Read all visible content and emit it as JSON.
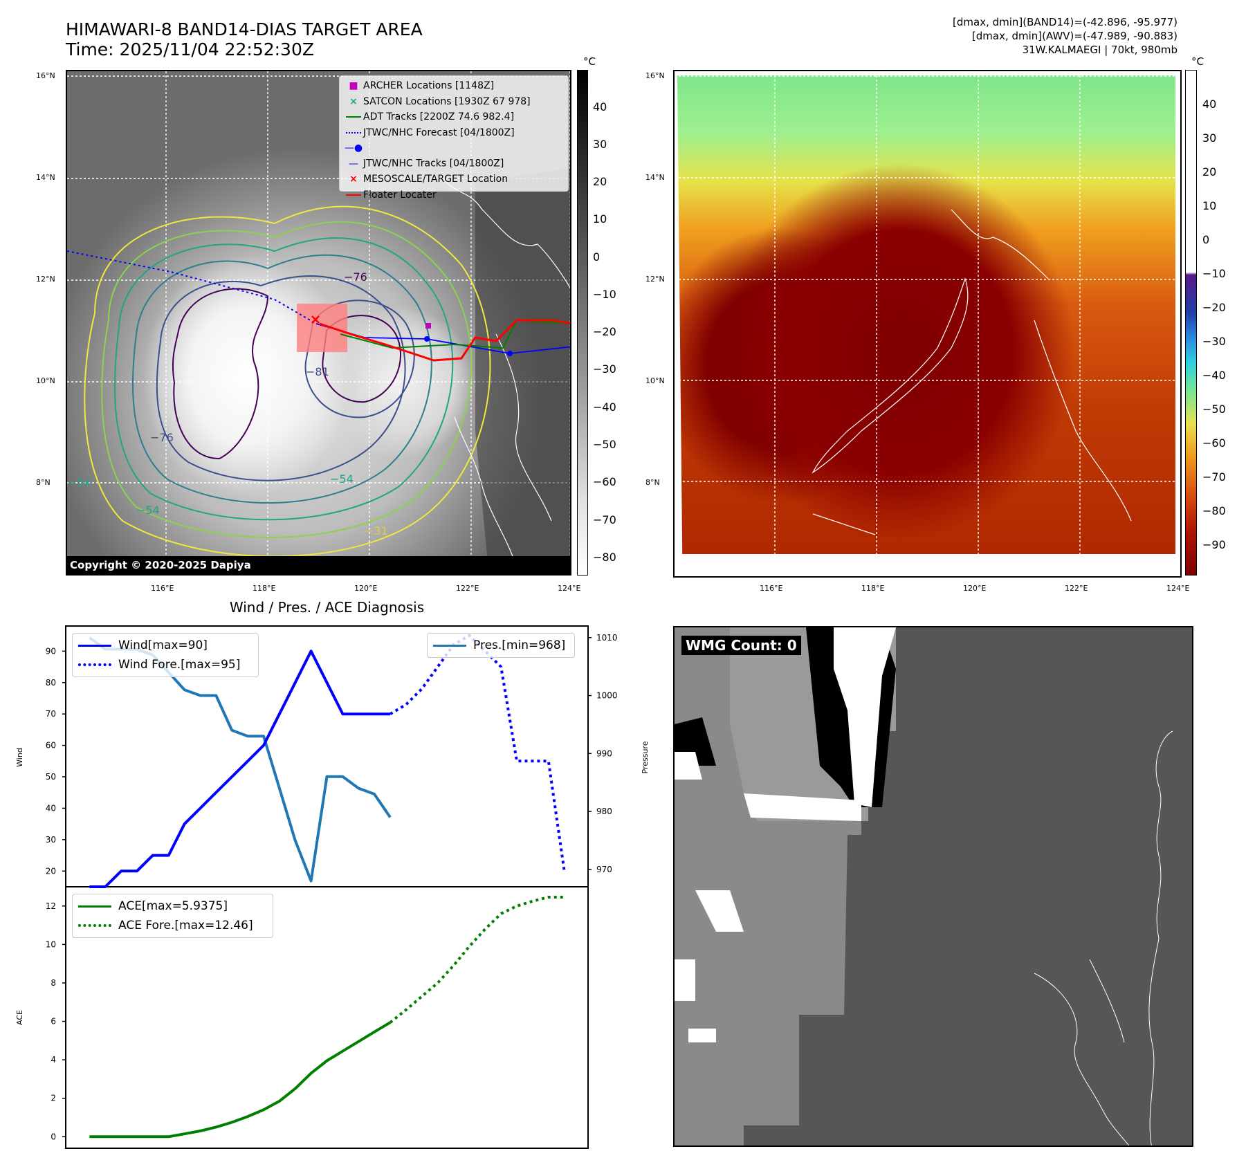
{
  "header": {
    "title_line1": "HIMAWARI-8 BAND14-DIAS TARGET AREA",
    "title_line2": "Time: 2025/11/04 22:52:30Z",
    "right_line1": "[dmax, dmin](BAND14)=(-42.896, -95.977)",
    "right_line2": "[dmax, dmin](AWV)=(-47.989, -90.883)",
    "right_line3": "31W.KALMAEGI | 70kt, 980mb"
  },
  "map1": {
    "copyright": "Copyright © 2020-2025 Dapiya",
    "lat_ticks": [
      "16°N",
      "14°N",
      "12°N",
      "10°N",
      "8°N"
    ],
    "lon_ticks": [
      "116°E",
      "118°E",
      "120°E",
      "122°E",
      "124°E"
    ],
    "colorbar_unit": "°C",
    "colorbar_ticks": [
      "40",
      "30",
      "20",
      "10",
      "0",
      "−10",
      "−20",
      "−30",
      "−40",
      "−50",
      "−60",
      "−70",
      "−80"
    ],
    "contour_labels": [
      "−76",
      "−81",
      "−76",
      "−54",
      "−54",
      "−54",
      "−31"
    ],
    "legend": [
      {
        "label": "ARCHER Locations [1148Z]",
        "color": "#c000c0",
        "marker": "square"
      },
      {
        "label": "SATCON Locations [1930Z 67 978]",
        "color": "#20a090",
        "marker": "x"
      },
      {
        "label": "ADT Tracks [2200Z 74.6 982.4]",
        "color": "#008000",
        "marker": "line"
      },
      {
        "label": "JTWC/NHC Forecast [04/1800Z]",
        "color": "#0000ff",
        "marker": "dotted"
      },
      {
        "label": "JTWC/NHC Tracks [04/1800Z]",
        "color": "#0000ff",
        "marker": "line-dot"
      },
      {
        "label": "MESOSCALE/TARGET Location",
        "color": "#ff0000",
        "marker": "x"
      },
      {
        "label": "Floater Locater",
        "color": "#ff0000",
        "marker": "line"
      }
    ]
  },
  "map2": {
    "lat_ticks": [
      "16°N",
      "14°N",
      "12°N",
      "10°N",
      "8°N"
    ],
    "lon_ticks": [
      "116°E",
      "118°E",
      "120°E",
      "122°E",
      "124°E"
    ],
    "colorbar_unit": "°C",
    "colorbar_ticks": [
      "40",
      "30",
      "20",
      "10",
      "0",
      "−10",
      "−20",
      "−30",
      "−40",
      "−50",
      "−60",
      "−70",
      "−80",
      "−90"
    ]
  },
  "panel4": {
    "label": "WMG Count: 0"
  },
  "chart_data": [
    {
      "type": "line",
      "title": "Wind / Pres. / ACE Diagnosis",
      "ylabel": "Wind",
      "y2label": "Pressure",
      "ylim": [
        15,
        98
      ],
      "y2lim": [
        967,
        1012
      ],
      "yticks": [
        20,
        30,
        40,
        50,
        60,
        70,
        80,
        90
      ],
      "y2ticks": [
        970,
        980,
        990,
        1000,
        1010
      ],
      "series": [
        {
          "name": "Wind[max=90]",
          "axis": "left",
          "style": "solid",
          "color": "#0000ff",
          "x": [
            0,
            1,
            2,
            3,
            4,
            5,
            6,
            7,
            8,
            9,
            10,
            11,
            12,
            13,
            14,
            15,
            16,
            17,
            18,
            19
          ],
          "values": [
            15,
            15,
            20,
            20,
            25,
            25,
            35,
            40,
            45,
            50,
            55,
            60,
            70,
            80,
            90,
            80,
            70,
            70,
            70,
            70
          ]
        },
        {
          "name": "Wind Fore.[max=95]",
          "axis": "left",
          "style": "dotted",
          "color": "#0000ff",
          "x": [
            19,
            20,
            21,
            22,
            23,
            24,
            25,
            26,
            27,
            28,
            29,
            30
          ],
          "values": [
            70,
            73,
            78,
            85,
            92,
            95,
            90,
            85,
            55,
            55,
            55,
            20
          ]
        },
        {
          "name": "Pres.[min=968]",
          "axis": "right",
          "style": "solid",
          "color": "#1f77b4",
          "x": [
            0,
            1,
            2,
            3,
            4,
            5,
            6,
            7,
            8,
            9,
            10,
            11,
            12,
            13,
            14,
            15,
            16,
            17,
            18,
            19
          ],
          "values": [
            1010,
            1008,
            1008,
            1008,
            1007,
            1004,
            1001,
            1000,
            1000,
            994,
            993,
            993,
            984,
            975,
            968,
            986,
            986,
            984,
            983,
            979
          ]
        }
      ]
    },
    {
      "type": "line",
      "ylabel": "ACE",
      "ylim": [
        -0.6,
        13
      ],
      "yticks": [
        0,
        2,
        4,
        6,
        8,
        10,
        12
      ],
      "series": [
        {
          "name": "ACE[max=5.9375]",
          "style": "solid",
          "color": "#008000",
          "x": [
            0,
            1,
            2,
            3,
            4,
            5,
            6,
            7,
            8,
            9,
            10,
            11,
            12,
            13,
            14,
            15,
            16,
            17,
            18,
            19
          ],
          "values": [
            0,
            0,
            0,
            0,
            0,
            0,
            0.15,
            0.3,
            0.5,
            0.75,
            1.05,
            1.4,
            1.85,
            2.5,
            3.3,
            3.95,
            4.45,
            4.95,
            5.45,
            5.94
          ]
        },
        {
          "name": "ACE Fore.[max=12.46]",
          "style": "dotted",
          "color": "#008000",
          "x": [
            19,
            20,
            21,
            22,
            23,
            24,
            25,
            26,
            27,
            28,
            29,
            30
          ],
          "values": [
            5.94,
            6.6,
            7.3,
            8.0,
            8.9,
            9.9,
            10.8,
            11.6,
            12.0,
            12.25,
            12.46,
            12.46
          ]
        }
      ]
    }
  ]
}
